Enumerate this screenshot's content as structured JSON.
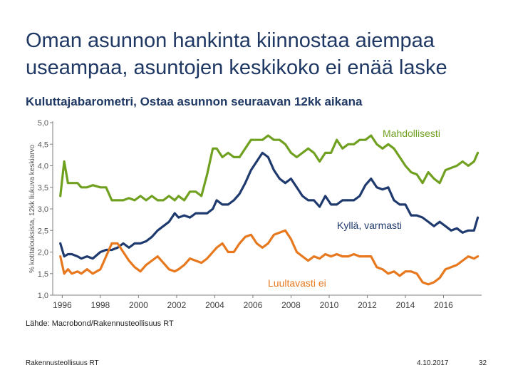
{
  "slide": {
    "title_line1": "Oman asunnon hankinta kiinnostaa aiempaa",
    "title_line2": "useampaa, asuntojen keskikoko ei enää laske",
    "source": "Lähde: Macrobond/Rakennusteollisuus RT",
    "footer_left": "Rakennusteollisuus RT",
    "footer_date": "4.10.2017",
    "page_number": "32"
  },
  "colors": {
    "title": "#1f3864",
    "mahdollisesti": "#70a020",
    "kylla_varmasti": "#1f3a6e",
    "luultavasti_ei": "#e8781e",
    "axis": "#7f7f7f"
  },
  "chart_data": {
    "type": "line",
    "title": "Kuluttajabarometri, Ostaa asunnon seuraavan 12kk aikana",
    "ylabel": "% kotitalouksista, 12kk liukuva keskiarvo",
    "xlabel": "",
    "ylim": [
      1.0,
      5.0
    ],
    "xlim": [
      1995.5,
      2018.0
    ],
    "y_ticks": [
      "1,0",
      "1,5",
      "2,0",
      "2,5",
      "3,0",
      "3,5",
      "4,0",
      "4,5",
      "5,0"
    ],
    "x_ticks": [
      "1996",
      "1998",
      "2000",
      "2002",
      "2004",
      "2006",
      "2008",
      "2010",
      "2012",
      "2014",
      "2016"
    ],
    "series": [
      {
        "name": "Mahdollisesti",
        "x": [
          1995.9,
          1996.1,
          1996.3,
          1996.5,
          1996.8,
          1997.0,
          1997.3,
          1997.6,
          1998.0,
          1998.3,
          1998.6,
          1998.9,
          1999.2,
          1999.5,
          1999.8,
          2000.1,
          2000.4,
          2000.7,
          2001.0,
          2001.3,
          2001.6,
          2001.9,
          2002.1,
          2002.4,
          2002.7,
          2003.0,
          2003.3,
          2003.6,
          2003.9,
          2004.1,
          2004.4,
          2004.7,
          2005.0,
          2005.3,
          2005.6,
          2005.9,
          2006.2,
          2006.5,
          2006.8,
          2007.1,
          2007.4,
          2007.7,
          2008.0,
          2008.3,
          2008.6,
          2008.9,
          2009.2,
          2009.5,
          2009.8,
          2010.1,
          2010.4,
          2010.7,
          2011.0,
          2011.3,
          2011.6,
          2011.9,
          2012.2,
          2012.5,
          2012.8,
          2013.1,
          2013.4,
          2013.7,
          2014.0,
          2014.3,
          2014.6,
          2014.9,
          2015.2,
          2015.5,
          2015.8,
          2016.1,
          2016.4,
          2016.7,
          2017.0,
          2017.3,
          2017.6,
          2017.8
        ],
        "values": [
          3.3,
          4.1,
          3.6,
          3.6,
          3.6,
          3.5,
          3.5,
          3.55,
          3.5,
          3.5,
          3.2,
          3.2,
          3.2,
          3.25,
          3.2,
          3.3,
          3.2,
          3.3,
          3.2,
          3.2,
          3.3,
          3.2,
          3.3,
          3.2,
          3.4,
          3.4,
          3.3,
          3.8,
          4.4,
          4.4,
          4.2,
          4.3,
          4.2,
          4.2,
          4.4,
          4.6,
          4.6,
          4.6,
          4.7,
          4.6,
          4.6,
          4.5,
          4.3,
          4.2,
          4.3,
          4.4,
          4.3,
          4.1,
          4.3,
          4.3,
          4.6,
          4.4,
          4.5,
          4.5,
          4.6,
          4.6,
          4.7,
          4.5,
          4.4,
          4.5,
          4.4,
          4.2,
          4.0,
          3.85,
          3.8,
          3.6,
          3.85,
          3.7,
          3.6,
          3.9,
          3.95,
          4.0,
          4.1,
          4.0,
          4.1,
          4.3
        ]
      },
      {
        "name": "Kyllä, varmasti",
        "x": [
          1995.9,
          1996.1,
          1996.3,
          1996.5,
          1996.8,
          1997.0,
          1997.3,
          1997.6,
          1998.0,
          1998.3,
          1998.6,
          1998.9,
          1999.2,
          1999.5,
          1999.8,
          2000.1,
          2000.4,
          2000.7,
          2001.0,
          2001.3,
          2001.6,
          2001.9,
          2002.1,
          2002.4,
          2002.7,
          2003.0,
          2003.3,
          2003.6,
          2003.9,
          2004.1,
          2004.4,
          2004.7,
          2005.0,
          2005.3,
          2005.6,
          2005.9,
          2006.2,
          2006.5,
          2006.8,
          2007.1,
          2007.4,
          2007.7,
          2008.0,
          2008.3,
          2008.6,
          2008.9,
          2009.2,
          2009.5,
          2009.8,
          2010.1,
          2010.4,
          2010.7,
          2011.0,
          2011.3,
          2011.6,
          2011.9,
          2012.2,
          2012.5,
          2012.8,
          2013.1,
          2013.4,
          2013.7,
          2014.0,
          2014.3,
          2014.6,
          2014.9,
          2015.2,
          2015.5,
          2015.8,
          2016.1,
          2016.4,
          2016.7,
          2017.0,
          2017.3,
          2017.6,
          2017.8
        ],
        "values": [
          2.2,
          1.9,
          1.95,
          1.95,
          1.9,
          1.85,
          1.9,
          1.85,
          2.0,
          2.05,
          2.05,
          2.1,
          2.2,
          2.1,
          2.2,
          2.2,
          2.25,
          2.35,
          2.5,
          2.6,
          2.7,
          2.9,
          2.8,
          2.85,
          2.8,
          2.9,
          2.9,
          2.9,
          3.0,
          3.2,
          3.1,
          3.1,
          3.2,
          3.35,
          3.6,
          3.9,
          4.1,
          4.3,
          4.2,
          3.9,
          3.7,
          3.6,
          3.7,
          3.5,
          3.3,
          3.2,
          3.2,
          3.05,
          3.3,
          3.1,
          3.1,
          3.2,
          3.2,
          3.2,
          3.3,
          3.55,
          3.7,
          3.5,
          3.45,
          3.5,
          3.2,
          3.1,
          3.1,
          2.85,
          2.85,
          2.8,
          2.7,
          2.6,
          2.7,
          2.6,
          2.5,
          2.55,
          2.45,
          2.5,
          2.5,
          2.8
        ]
      },
      {
        "name": "Luultavasti ei",
        "x": [
          1995.9,
          1996.1,
          1996.3,
          1996.5,
          1996.8,
          1997.0,
          1997.3,
          1997.6,
          1998.0,
          1998.3,
          1998.6,
          1998.9,
          1999.2,
          1999.5,
          1999.8,
          2000.1,
          2000.4,
          2000.7,
          2001.0,
          2001.3,
          2001.6,
          2001.9,
          2002.1,
          2002.4,
          2002.7,
          2003.0,
          2003.3,
          2003.6,
          2003.9,
          2004.1,
          2004.4,
          2004.7,
          2005.0,
          2005.3,
          2005.6,
          2005.9,
          2006.2,
          2006.5,
          2006.8,
          2007.1,
          2007.4,
          2007.7,
          2008.0,
          2008.3,
          2008.6,
          2008.9,
          2009.2,
          2009.5,
          2009.8,
          2010.1,
          2010.4,
          2010.7,
          2011.0,
          2011.3,
          2011.6,
          2011.9,
          2012.2,
          2012.5,
          2012.8,
          2013.1,
          2013.4,
          2013.7,
          2014.0,
          2014.3,
          2014.6,
          2014.9,
          2015.2,
          2015.5,
          2015.8,
          2016.1,
          2016.4,
          2016.7,
          2017.0,
          2017.3,
          2017.6,
          2017.8
        ],
        "values": [
          1.9,
          1.5,
          1.6,
          1.5,
          1.55,
          1.5,
          1.6,
          1.5,
          1.6,
          1.9,
          2.2,
          2.2,
          2.0,
          1.8,
          1.65,
          1.55,
          1.7,
          1.8,
          1.9,
          1.75,
          1.6,
          1.55,
          1.6,
          1.7,
          1.85,
          1.8,
          1.75,
          1.85,
          2.0,
          2.1,
          2.2,
          2.0,
          2.0,
          2.2,
          2.35,
          2.4,
          2.2,
          2.1,
          2.2,
          2.4,
          2.45,
          2.5,
          2.3,
          2.0,
          1.9,
          1.8,
          1.9,
          1.85,
          1.95,
          1.9,
          1.95,
          1.9,
          1.9,
          1.95,
          1.9,
          1.9,
          1.9,
          1.65,
          1.6,
          1.5,
          1.55,
          1.45,
          1.55,
          1.55,
          1.5,
          1.3,
          1.25,
          1.3,
          1.4,
          1.6,
          1.65,
          1.7,
          1.8,
          1.9,
          1.85,
          1.9
        ]
      }
    ],
    "annotations": [
      {
        "text": "Mahdollisesti",
        "series": "Mahdollisesti"
      },
      {
        "text": "Kyllä, varmasti",
        "series": "Kyllä, varmasti"
      },
      {
        "text": "Luultavasti ei",
        "series": "Luultavasti ei"
      }
    ]
  }
}
